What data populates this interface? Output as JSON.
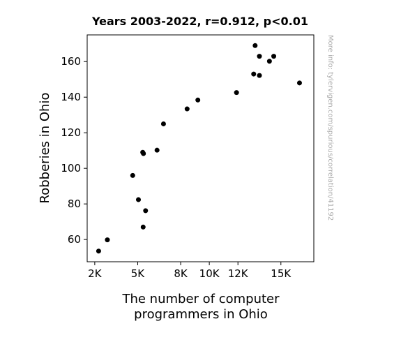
{
  "chart_data": {
    "type": "scatter",
    "title": "Years 2003-2022, r=0.912, p<0.01",
    "xlabel_lines": [
      "The number of computer",
      "programmers in Ohio"
    ],
    "ylabel": "Robberies in Ohio",
    "watermark": "More info: tylervigen.com/spurious/correlation/41192",
    "xlim": [
      1470,
      17300
    ],
    "ylim": [
      47.5,
      175
    ],
    "x_ticks": [
      {
        "value": 2000,
        "label": "2K"
      },
      {
        "value": 5000,
        "label": "5K"
      },
      {
        "value": 8000,
        "label": "8K"
      },
      {
        "value": 10000,
        "label": "10K"
      },
      {
        "value": 12000,
        "label": "12K"
      },
      {
        "value": 15000,
        "label": "15K"
      }
    ],
    "y_ticks": [
      {
        "value": 60,
        "label": "60"
      },
      {
        "value": 80,
        "label": "80"
      },
      {
        "value": 100,
        "label": "100"
      },
      {
        "value": 120,
        "label": "120"
      },
      {
        "value": 140,
        "label": "140"
      },
      {
        "value": 160,
        "label": "160"
      }
    ],
    "grid": false,
    "point_color": "#000000",
    "points": [
      {
        "x": 2270,
        "y": 53.5
      },
      {
        "x": 2880,
        "y": 59.8
      },
      {
        "x": 4650,
        "y": 96.0
      },
      {
        "x": 5050,
        "y": 82.4
      },
      {
        "x": 5350,
        "y": 109.0
      },
      {
        "x": 5400,
        "y": 108.3
      },
      {
        "x": 5380,
        "y": 67.0
      },
      {
        "x": 5550,
        "y": 76.2
      },
      {
        "x": 6350,
        "y": 110.2
      },
      {
        "x": 6800,
        "y": 125.0
      },
      {
        "x": 8450,
        "y": 133.4
      },
      {
        "x": 9200,
        "y": 138.4
      },
      {
        "x": 11900,
        "y": 142.6
      },
      {
        "x": 13100,
        "y": 153.0
      },
      {
        "x": 13200,
        "y": 169.0
      },
      {
        "x": 13500,
        "y": 163.0
      },
      {
        "x": 13500,
        "y": 152.2
      },
      {
        "x": 14200,
        "y": 160.2
      },
      {
        "x": 14500,
        "y": 163.0
      },
      {
        "x": 16300,
        "y": 148.0
      }
    ]
  }
}
